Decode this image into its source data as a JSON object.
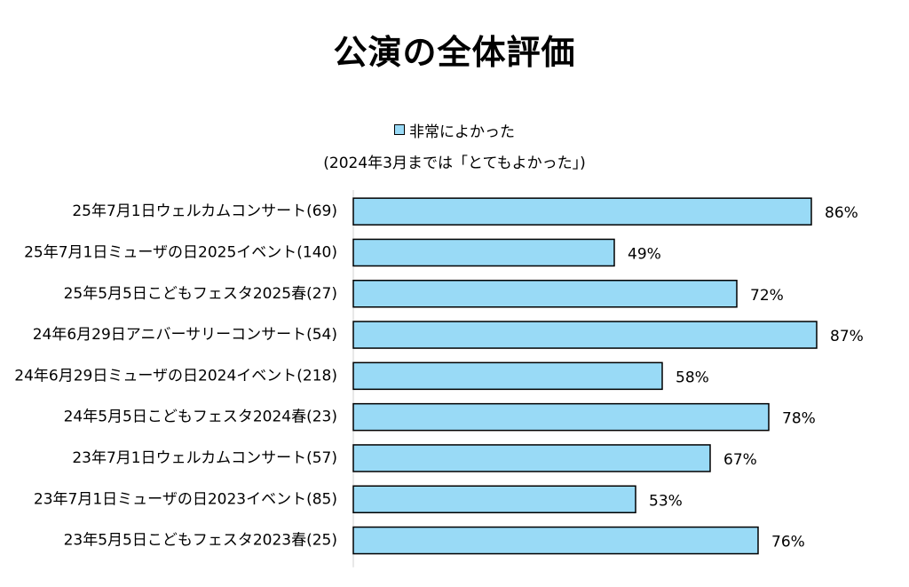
{
  "chart_data": {
    "type": "bar",
    "orientation": "horizontal",
    "title": "公演の全体評価",
    "legend": {
      "position": "top",
      "entries": [
        "非常によかった"
      ],
      "note": "(2024年3月までは「とてもよかった」)"
    },
    "categories": [
      "25年7月1日ウェルカムコンサート(69)",
      "25年7月1日ミューザの日2025イベント(140)",
      "25年5月5日こどもフェスタ2025春(27)",
      "24年6月29日アニバーサリーコンサート(54)",
      "24年6月29日ミューザの日2024イベント(218)",
      "24年5月5日こどもフェスタ2024春(23)",
      "23年7月1日ウェルカムコンサート(57)",
      "23年7月1日ミューザの日2023イベント(85)",
      "23年5月5日こどもフェスタ2023春(25)"
    ],
    "series": [
      {
        "name": "非常によかった",
        "values": [
          86,
          49,
          72,
          87,
          58,
          78,
          67,
          53,
          76
        ]
      }
    ],
    "value_labels": [
      "86%",
      "49%",
      "72%",
      "87%",
      "58%",
      "78%",
      "67%",
      "53%",
      "76%"
    ],
    "xlim": [
      0,
      100
    ],
    "grid": false,
    "colors": {
      "bar_fill": "#99daf6",
      "bar_stroke": "#000000",
      "axis": "#d0d0d0"
    }
  }
}
